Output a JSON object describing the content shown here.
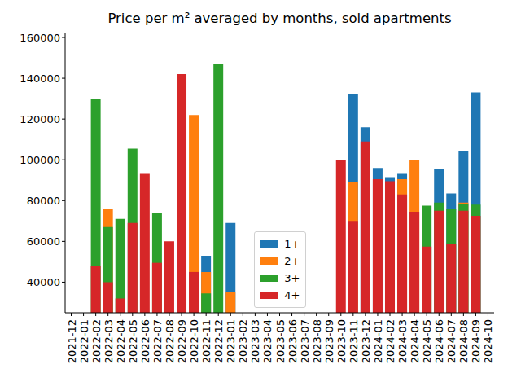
{
  "chart_data": {
    "type": "bar",
    "title": "Price per m² averaged by months, sold apartments",
    "categories": [
      "2021-12",
      "2022-01",
      "2022-02",
      "2022-03",
      "2022-04",
      "2022-05",
      "2022-06",
      "2022-07",
      "2022-08",
      "2022-09",
      "2022-10",
      "2022-11",
      "2022-12",
      "2023-01",
      "2023-02",
      "2023-03",
      "2023-04",
      "2023-05",
      "2023-06",
      "2023-07",
      "2023-08",
      "2023-09",
      "2023-10",
      "2023-11",
      "2023-12",
      "2024-01",
      "2024-02",
      "2024-03",
      "2024-04",
      "2024-05",
      "2024-06",
      "2024-07",
      "2024-08",
      "2024-09",
      "2024-10"
    ],
    "series": [
      {
        "name": "1+",
        "color": "#1f77b4",
        "values": [
          null,
          null,
          null,
          null,
          null,
          null,
          null,
          null,
          null,
          null,
          null,
          53000,
          null,
          69000,
          null,
          null,
          null,
          null,
          null,
          null,
          null,
          null,
          null,
          132000,
          116000,
          96000,
          91500,
          93500,
          null,
          null,
          95500,
          83500,
          104500,
          133000,
          null
        ]
      },
      {
        "name": "2+",
        "color": "#ff7f0e",
        "values": [
          null,
          null,
          null,
          76000,
          null,
          null,
          null,
          null,
          null,
          null,
          122000,
          45000,
          null,
          35000,
          null,
          null,
          null,
          null,
          null,
          null,
          null,
          null,
          null,
          89000,
          null,
          null,
          null,
          90500,
          100000,
          null,
          null,
          null,
          79000,
          null,
          null
        ]
      },
      {
        "name": "3+",
        "color": "#2ca02c",
        "values": [
          null,
          null,
          130000,
          67000,
          71000,
          105500,
          null,
          74000,
          null,
          null,
          null,
          34500,
          147000,
          null,
          null,
          null,
          null,
          null,
          null,
          null,
          null,
          null,
          null,
          null,
          null,
          null,
          null,
          null,
          null,
          77500,
          79000,
          76000,
          78500,
          78000,
          null
        ]
      },
      {
        "name": "4+",
        "color": "#d62728",
        "values": [
          null,
          null,
          48000,
          40000,
          32000,
          69000,
          93500,
          49500,
          60000,
          142000,
          45000,
          null,
          null,
          null,
          null,
          null,
          null,
          null,
          null,
          null,
          null,
          null,
          100000,
          70000,
          109000,
          90500,
          89500,
          83000,
          74500,
          57500,
          75000,
          59000,
          75000,
          72500,
          null
        ]
      }
    ],
    "ylim": [
      25000,
      162000
    ],
    "yticks": [
      40000,
      60000,
      80000,
      100000,
      120000,
      140000,
      160000
    ],
    "stacked": false,
    "grid": false,
    "legend": "lower center"
  }
}
